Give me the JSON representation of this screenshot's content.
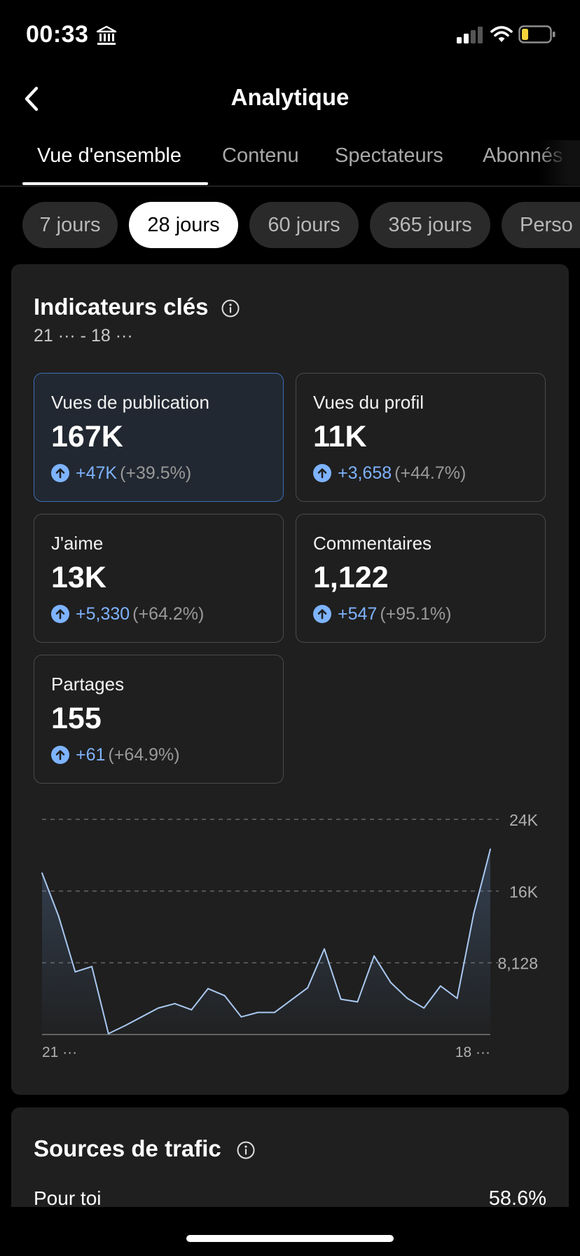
{
  "status_bar": {
    "time": "00:33"
  },
  "header": {
    "title": "Analytique"
  },
  "tabs": [
    {
      "label": "Vue d'ensemble",
      "active": true
    },
    {
      "label": "Contenu",
      "active": false
    },
    {
      "label": "Spectateurs",
      "active": false
    },
    {
      "label": "Abonnés",
      "active": false
    }
  ],
  "periods": [
    {
      "label": "7 jours",
      "active": false
    },
    {
      "label": "28 jours",
      "active": true
    },
    {
      "label": "60 jours",
      "active": false
    },
    {
      "label": "365 jours",
      "active": false
    },
    {
      "label": "Perso",
      "active": false
    }
  ],
  "key_metrics": {
    "title": "Indicateurs clés",
    "date_range": "21 ··· - 18 ···",
    "items": [
      {
        "label": "Vues de publication",
        "value": "167K",
        "delta": "+47K",
        "percent": "(+39.5%)",
        "selected": true
      },
      {
        "label": "Vues du profil",
        "value": "11K",
        "delta": "+3,658",
        "percent": "(+44.7%)",
        "selected": false
      },
      {
        "label": "J'aime",
        "value": "13K",
        "delta": "+5,330",
        "percent": "(+64.2%)",
        "selected": false
      },
      {
        "label": "Commentaires",
        "value": "1,122",
        "delta": "+547",
        "percent": "(+95.1%)",
        "selected": false
      },
      {
        "label": "Partages",
        "value": "155",
        "delta": "+61",
        "percent": "(+64.9%)",
        "selected": false
      }
    ]
  },
  "chart_data": {
    "type": "area",
    "y_ticks": [
      "24K",
      "16K",
      "8,128"
    ],
    "ylim": [
      0,
      24384
    ],
    "x_labels": [
      "21 ···",
      "18 ···"
    ],
    "grid": true,
    "line_color": "#a9c8f0",
    "values": [
      18300,
      13400,
      7100,
      7700,
      100,
      1000,
      2000,
      3000,
      3500,
      2800,
      5200,
      4400,
      2000,
      2500,
      2500,
      3900,
      5300,
      9700,
      4000,
      3700,
      8900,
      5900,
      4100,
      3000,
      5500,
      4100,
      13700,
      21000
    ]
  },
  "traffic_sources": {
    "title": "Sources de trafic",
    "rows": [
      {
        "label": "Pour toi",
        "value": "58.6%"
      }
    ]
  },
  "colors": {
    "accent_blue": "#7eb3ff",
    "selected_border": "#3b6fb3",
    "card_bg": "#1f1f1f"
  },
  "icons": [
    "bank-icon",
    "signal-icon",
    "wifi-icon",
    "battery-icon",
    "back-icon",
    "info-icon",
    "arrow-up-icon"
  ]
}
